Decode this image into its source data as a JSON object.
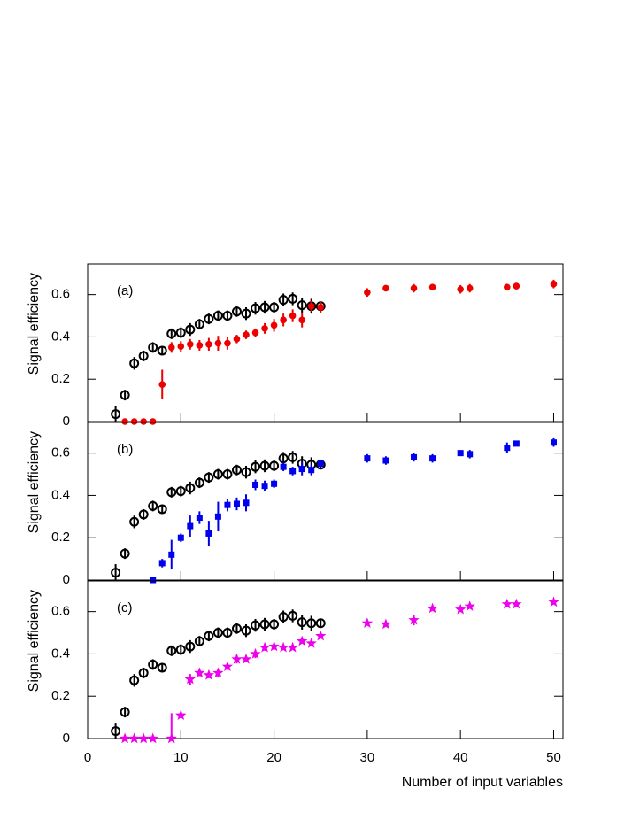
{
  "chart_data": [
    {
      "type": "scatter",
      "panel_label": "(a)",
      "ylabel": "Signal efficiency",
      "xlim": [
        0,
        51
      ],
      "ylim": [
        0,
        0.745
      ],
      "yticks": [
        0,
        0.2,
        0.4,
        0.6
      ],
      "series": [
        {
          "color": "#000000",
          "marker": "open-circle",
          "x": [
            3,
            4,
            5,
            6,
            7,
            8,
            9,
            10,
            11,
            12,
            13,
            14,
            15,
            16,
            17,
            18,
            19,
            20,
            21,
            22,
            23,
            24,
            25
          ],
          "values": [
            0.035,
            0.125,
            0.275,
            0.31,
            0.35,
            0.335,
            0.415,
            0.42,
            0.435,
            0.46,
            0.485,
            0.5,
            0.5,
            0.52,
            0.51,
            0.535,
            0.54,
            0.54,
            0.575,
            0.58,
            0.55,
            0.545,
            0.545
          ],
          "errors": [
            0.04,
            0.025,
            0.03,
            0.025,
            0.025,
            0.02,
            0.025,
            0.025,
            0.03,
            0.025,
            0.025,
            0.025,
            0.025,
            0.025,
            0.03,
            0.03,
            0.03,
            0.025,
            0.03,
            0.03,
            0.035,
            0.035,
            0.02
          ]
        },
        {
          "color": "#ee0000",
          "marker": "circle",
          "x": [
            4,
            5,
            6,
            7,
            8,
            9,
            10,
            11,
            12,
            13,
            14,
            15,
            16,
            17,
            18,
            19,
            20,
            21,
            22,
            23,
            24,
            25,
            30,
            32,
            35,
            37,
            40,
            41,
            45,
            46,
            50
          ],
          "values": [
            0,
            0,
            0,
            0,
            0.175,
            0.35,
            0.355,
            0.365,
            0.36,
            0.365,
            0.37,
            0.37,
            0.39,
            0.41,
            0.42,
            0.44,
            0.455,
            0.48,
            0.5,
            0.48,
            0.545,
            0.54,
            0.61,
            0.63,
            0.63,
            0.635,
            0.625,
            0.63,
            0.635,
            0.64,
            0.65
          ],
          "errors": [
            0.01,
            0.01,
            0.01,
            0.01,
            0.07,
            0.025,
            0.025,
            0.025,
            0.025,
            0.03,
            0.035,
            0.03,
            0.02,
            0.02,
            0.02,
            0.025,
            0.03,
            0.03,
            0.03,
            0.035,
            0.025,
            0.025,
            0.02,
            0.01,
            0.02,
            0.015,
            0.02,
            0.02,
            0.015,
            0.015,
            0.02
          ]
        }
      ]
    },
    {
      "type": "scatter",
      "panel_label": "(b)",
      "ylabel": "Signal efficiency",
      "xlim": [
        0,
        51
      ],
      "ylim": [
        0,
        0.745
      ],
      "yticks": [
        0,
        0.2,
        0.4,
        0.6
      ],
      "series": [
        {
          "color": "#000000",
          "marker": "open-circle",
          "x": [
            3,
            4,
            5,
            6,
            7,
            8,
            9,
            10,
            11,
            12,
            13,
            14,
            15,
            16,
            17,
            18,
            19,
            20,
            21,
            22,
            23,
            24,
            25
          ],
          "values": [
            0.035,
            0.125,
            0.275,
            0.31,
            0.35,
            0.335,
            0.415,
            0.42,
            0.435,
            0.46,
            0.485,
            0.5,
            0.5,
            0.52,
            0.51,
            0.535,
            0.54,
            0.54,
            0.575,
            0.58,
            0.55,
            0.545,
            0.545
          ],
          "errors": [
            0.04,
            0.025,
            0.03,
            0.025,
            0.025,
            0.02,
            0.025,
            0.025,
            0.03,
            0.025,
            0.025,
            0.025,
            0.025,
            0.025,
            0.03,
            0.03,
            0.03,
            0.025,
            0.03,
            0.03,
            0.035,
            0.035,
            0.02
          ]
        },
        {
          "color": "#0000ee",
          "marker": "square",
          "x": [
            7,
            8,
            9,
            10,
            11,
            12,
            13,
            14,
            15,
            16,
            17,
            18,
            19,
            20,
            21,
            22,
            23,
            24,
            25,
            30,
            32,
            35,
            37,
            40,
            41,
            45,
            46,
            50
          ],
          "values": [
            0,
            0.08,
            0.12,
            0.2,
            0.255,
            0.295,
            0.22,
            0.3,
            0.355,
            0.36,
            0.365,
            0.45,
            0.445,
            0.455,
            0.535,
            0.515,
            0.525,
            0.52,
            0.55,
            0.575,
            0.565,
            0.58,
            0.575,
            0.6,
            0.595,
            0.625,
            0.645,
            0.65
          ],
          "errors": [
            0.005,
            0.02,
            0.07,
            0.02,
            0.05,
            0.03,
            0.06,
            0.07,
            0.03,
            0.03,
            0.04,
            0.025,
            0.025,
            0.02,
            0.02,
            0.02,
            0.03,
            0.025,
            0.015,
            0.02,
            0.02,
            0.02,
            0.02,
            0.01,
            0.02,
            0.025,
            0.01,
            0.02
          ]
        }
      ]
    },
    {
      "type": "scatter",
      "panel_label": "(c)",
      "ylabel": "Signal efficiency",
      "xlabel": "Number of input variables",
      "xlim": [
        0,
        51
      ],
      "ylim": [
        0,
        0.745
      ],
      "yticks": [
        0,
        0.2,
        0.4,
        0.6
      ],
      "xticks": [
        0,
        10,
        20,
        30,
        40,
        50
      ],
      "series": [
        {
          "color": "#000000",
          "marker": "open-circle",
          "x": [
            3,
            4,
            5,
            6,
            7,
            8,
            9,
            10,
            11,
            12,
            13,
            14,
            15,
            16,
            17,
            18,
            19,
            20,
            21,
            22,
            23,
            24,
            25
          ],
          "values": [
            0.035,
            0.125,
            0.275,
            0.31,
            0.35,
            0.335,
            0.415,
            0.42,
            0.435,
            0.46,
            0.485,
            0.5,
            0.5,
            0.52,
            0.51,
            0.535,
            0.54,
            0.54,
            0.575,
            0.58,
            0.55,
            0.545,
            0.545
          ],
          "errors": [
            0.04,
            0.025,
            0.03,
            0.025,
            0.025,
            0.02,
            0.025,
            0.025,
            0.03,
            0.025,
            0.025,
            0.025,
            0.025,
            0.025,
            0.03,
            0.03,
            0.03,
            0.025,
            0.03,
            0.03,
            0.035,
            0.035,
            0.02
          ]
        },
        {
          "color": "#ee00ee",
          "marker": "star",
          "x": [
            4,
            5,
            6,
            7,
            9,
            10,
            11,
            12,
            13,
            14,
            15,
            16,
            17,
            18,
            19,
            20,
            21,
            22,
            23,
            24,
            25,
            30,
            32,
            35,
            37,
            40,
            41,
            45,
            46,
            50
          ],
          "values": [
            0,
            0,
            0,
            0,
            0,
            0.11,
            0.28,
            0.31,
            0.3,
            0.31,
            0.34,
            0.375,
            0.375,
            0.4,
            0.43,
            0.435,
            0.43,
            0.43,
            0.46,
            0.45,
            0.485,
            0.545,
            0.54,
            0.56,
            0.615,
            0.61,
            0.625,
            0.635,
            0.635,
            0.645
          ],
          "errors": [
            0.01,
            0.015,
            0.015,
            0.005,
            0.12,
            0.01,
            0.025,
            0.015,
            0.015,
            0.02,
            0.015,
            0.02,
            0.015,
            0.02,
            0.015,
            0.015,
            0.01,
            0.01,
            0.01,
            0.01,
            0.01,
            0.01,
            0.01,
            0.025,
            0.01,
            0.01,
            0.01,
            0.01,
            0.01,
            0.01
          ]
        }
      ]
    }
  ]
}
